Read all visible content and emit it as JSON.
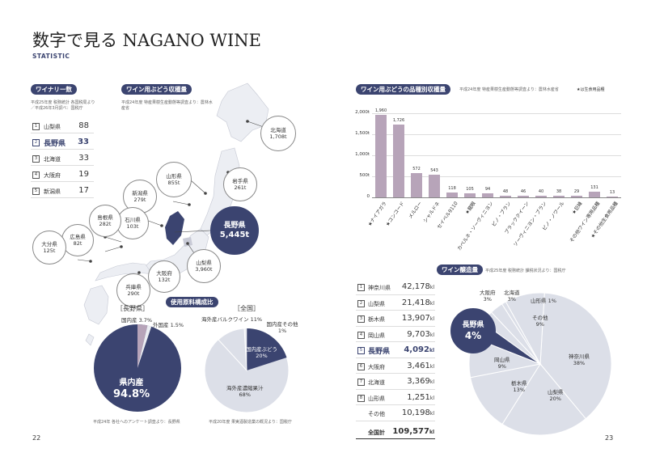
{
  "page_title": "数字で見る NAGANO WINE",
  "page_subtitle": "STATISTIC",
  "left_page_number": "22",
  "right_page_number": "23",
  "wineries": {
    "label": "ワイナリー数",
    "source": "平成25年度 税務統計 各国税局より／平成26年3月調べ：国税庁",
    "rows": [
      {
        "rank": "1",
        "pref": "山梨県",
        "value": "88"
      },
      {
        "rank": "2",
        "pref": "長野県",
        "value": "33"
      },
      {
        "rank": "3",
        "pref": "北海道",
        "value": "33"
      },
      {
        "rank": "4",
        "pref": "大阪府",
        "value": "19"
      },
      {
        "rank": "5",
        "pref": "新潟県",
        "value": "17"
      }
    ]
  },
  "grape_harvest": {
    "label": "ワイン用ぶどう収穫量",
    "source": "平成24年度 特産果樹生産動態等調査より：農林水産省",
    "regions": [
      {
        "name": "北海道",
        "value": "1,708t"
      },
      {
        "name": "岩手県",
        "value": "261t"
      },
      {
        "name": "山形県",
        "value": "855t"
      },
      {
        "name": "新潟県",
        "value": "279t"
      },
      {
        "name": "石川県",
        "value": "103t"
      },
      {
        "name": "島根県",
        "value": "282t"
      },
      {
        "name": "広島県",
        "value": "82t"
      },
      {
        "name": "大分県",
        "value": "125t"
      },
      {
        "name": "兵庫県",
        "value": "290t"
      },
      {
        "name": "大阪府",
        "value": "132t"
      },
      {
        "name": "山梨県",
        "value": "3,960t"
      }
    ],
    "highlight": {
      "name": "長野県",
      "value": "5,445t"
    }
  },
  "raw_material": {
    "label": "使用原料構成比",
    "nagano_title": "［長野県］",
    "japan_title": "［全国］",
    "nagano_slices": [
      {
        "name": "県内産",
        "value": "94.8%"
      },
      {
        "name": "国内産",
        "value": "3.7%"
      },
      {
        "name": "外国産",
        "value": "1.5%"
      }
    ],
    "japan_slices": [
      {
        "name": "国内産ぶどう",
        "value": "20%"
      },
      {
        "name": "海外産濃縮果汁",
        "value": "68%"
      },
      {
        "name": "海外産バルクワイン",
        "value": "11%"
      },
      {
        "name": "国内産その他",
        "value": "1%"
      }
    ],
    "nagano_note": "平成24年 各社へのアンケート調査より：長野県",
    "japan_note": "平成20年度 果実酒製造業の概況より：国税庁"
  },
  "variety_chart": {
    "label": "ワイン用ぶどうの品種別収穫量",
    "source": "平成24年度 特産果樹生産動態等調査より：農林水産省",
    "legend_note": "★は生食用品種",
    "chart_data": {
      "type": "bar",
      "categories": [
        "★ナイアガラ",
        "★コンコード",
        "メルロー",
        "シャルドネ",
        "セイベル9110",
        "★龍眼",
        "カベルネ・ソーヴィニヨン",
        "ピノ・ブラン",
        "ブラッククイーン",
        "ソーヴィニヨン・ブラン",
        "ピノ・ノワール",
        "★巨峰",
        "その他ワイン専用品種",
        "★その他生食用品種"
      ],
      "values": [
        1960,
        1726,
        572,
        543,
        118,
        105,
        94,
        48,
        46,
        40,
        38,
        29,
        131,
        13
      ],
      "value_labels": [
        "1,960",
        "1,726",
        "572",
        "543",
        "118",
        "105",
        "94",
        "48",
        "46",
        "40",
        "38",
        "29",
        "131",
        "13"
      ],
      "yticks": [
        "0",
        "500t",
        "1,000t",
        "1,500t",
        "2,000t"
      ],
      "ylim": [
        0,
        2000
      ],
      "bar_color": "#b7a4b9"
    }
  },
  "wine_production": {
    "label": "ワイン醸造量",
    "source": "平成25年度 税務統計 課税状況より：国税庁",
    "rows": [
      {
        "rank": "1",
        "pref": "神奈川県",
        "value": "42,178",
        "unit": "kl"
      },
      {
        "rank": "2",
        "pref": "山梨県",
        "value": "21,418",
        "unit": "kl"
      },
      {
        "rank": "3",
        "pref": "栃木県",
        "value": "13,907",
        "unit": "kl"
      },
      {
        "rank": "4",
        "pref": "岡山県",
        "value": "9,703",
        "unit": "kl"
      },
      {
        "rank": "5",
        "pref": "長野県",
        "value": "4,092",
        "unit": "kl"
      },
      {
        "rank": "6",
        "pref": "大阪府",
        "value": "3,461",
        "unit": "kl"
      },
      {
        "rank": "7",
        "pref": "北海道",
        "value": "3,369",
        "unit": "kl"
      },
      {
        "rank": "8",
        "pref": "山形県",
        "value": "1,251",
        "unit": "kl"
      },
      {
        "rank": "",
        "pref": "その他",
        "value": "10,198",
        "unit": "kl"
      }
    ],
    "total": {
      "label": "全国計",
      "value": "109,577",
      "unit": "kl"
    },
    "pie": [
      {
        "name": "神奈川県",
        "value": "38%"
      },
      {
        "name": "山梨県",
        "value": "20%"
      },
      {
        "name": "栃木県",
        "value": "13%"
      },
      {
        "name": "岡山県",
        "value": "9%"
      },
      {
        "name": "長野県",
        "value": "4%"
      },
      {
        "name": "大阪府",
        "value": "3%"
      },
      {
        "name": "北海道",
        "value": "3%"
      },
      {
        "name": "山形県",
        "value": "1%"
      },
      {
        "name": "その他",
        "value": "9%"
      }
    ],
    "pie_pct": [
      38,
      20,
      13,
      9,
      4,
      3,
      3,
      1,
      9
    ]
  },
  "colors": {
    "navy": "#3b4470",
    "light": "#dcdfe8",
    "mauve": "#b7a4b9"
  }
}
